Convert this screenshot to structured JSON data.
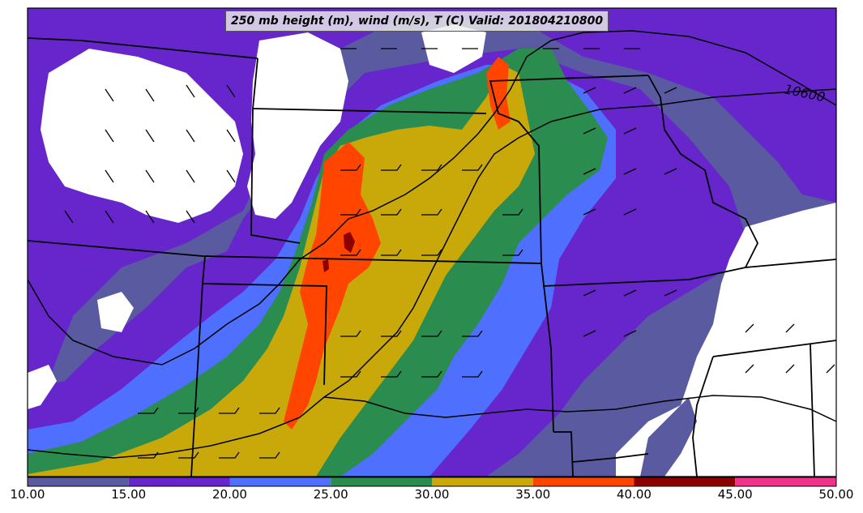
{
  "title": "250 mb height (m), wind (m/s), T (C) Valid: 201804210800",
  "contour_label": "10600",
  "colorbar": {
    "ticks": [
      "10.00",
      "15.00",
      "20.00",
      "25.00",
      "30.00",
      "35.00",
      "40.00",
      "45.00",
      "50.00"
    ],
    "bins": [
      {
        "from": 10,
        "to": 15,
        "color": "#5a5aa0"
      },
      {
        "from": 15,
        "to": 20,
        "color": "#6626cc"
      },
      {
        "from": 20,
        "to": 25,
        "color": "#4f6fff"
      },
      {
        "from": 25,
        "to": 30,
        "color": "#2b8c4f"
      },
      {
        "from": 30,
        "to": 35,
        "color": "#c9a90a"
      },
      {
        "from": 35,
        "to": 40,
        "color": "#ff4500"
      },
      {
        "from": 40,
        "to": 45,
        "color": "#8b0000"
      },
      {
        "from": 45,
        "to": 50,
        "color": "#f0328c"
      }
    ]
  }
}
